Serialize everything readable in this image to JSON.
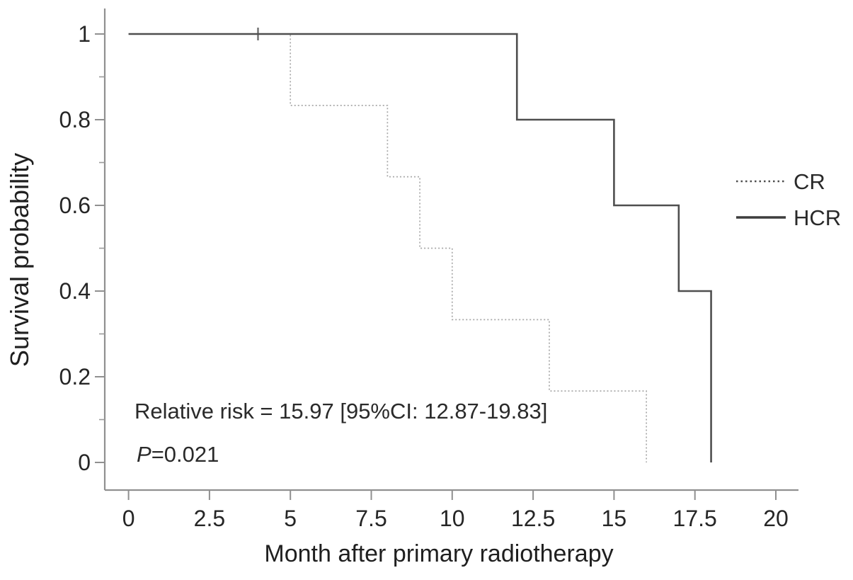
{
  "chart_data": {
    "type": "line",
    "variant": "kaplan_meier_step_survival",
    "title": "",
    "xlabel": "Month after primary radiotherapy",
    "ylabel": "Survival probability",
    "xlim": [
      0,
      20.7
    ],
    "ylim": [
      0,
      1
    ],
    "xticks": [
      0,
      2.5,
      5,
      7.5,
      10,
      12.5,
      15,
      17.5,
      20
    ],
    "xtick_labels": [
      "0",
      "2.5",
      "5",
      "7.5",
      "10",
      "12.5",
      "15",
      "17.5",
      "20"
    ],
    "yticks": [
      0,
      0.2,
      0.4,
      0.6,
      0.8,
      1
    ],
    "ytick_labels": [
      "0",
      "0.2",
      "0.4",
      "0.6",
      "0.8",
      "1"
    ],
    "y_minor_ticks": [
      0.1,
      0.3,
      0.5,
      0.7,
      0.9
    ],
    "grid": false,
    "legend_position": "right-middle",
    "series": [
      {
        "name": "CR",
        "line_style": "dotted",
        "color": "#a8a8a8",
        "step_points": [
          [
            0,
            1
          ],
          [
            5,
            0.8333
          ],
          [
            8,
            0.6667
          ],
          [
            9,
            0.5
          ],
          [
            10,
            0.3333
          ],
          [
            13,
            0.1667
          ],
          [
            16,
            0
          ]
        ],
        "censor_marks": [
          [
            4,
            1
          ]
        ]
      },
      {
        "name": "HCR",
        "line_style": "solid",
        "color": "#4f4f4f",
        "step_points": [
          [
            0,
            1
          ],
          [
            12,
            0.8
          ],
          [
            15,
            0.6
          ],
          [
            17,
            0.4
          ],
          [
            18,
            0
          ]
        ],
        "censor_marks": []
      }
    ],
    "annotations": {
      "line1": "Relative risk = 15.97 [95%CI: 12.87-19.83]",
      "line2_italic": "P",
      "line2_rest": "=0.021",
      "line2_full": "P=0.021"
    }
  },
  "colors": {
    "axis": "#909090",
    "cr_curve": "#a8a8a8",
    "hcr_curve": "#4f4f4f",
    "text": "#262626",
    "background": "#ffffff"
  }
}
